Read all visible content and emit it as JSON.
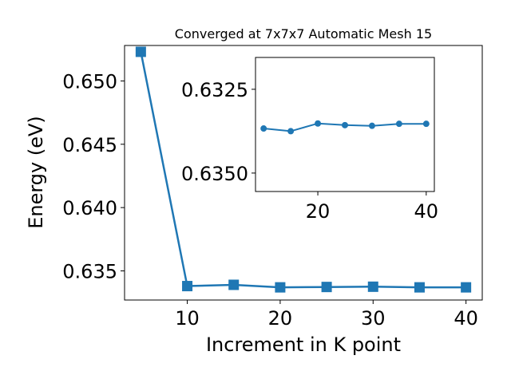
{
  "chart_data": [
    {
      "type": "line",
      "title": "Converged at 7x7x7 Automatic Mesh 15",
      "xlabel": "Increment in K point",
      "ylabel": "Energy (eV)",
      "x": [
        5,
        10,
        15,
        20,
        25,
        30,
        35,
        40
      ],
      "xlim": [
        3.25,
        41.75
      ],
      "ylim": [
        0.6327,
        0.6528
      ],
      "xticks": [
        10,
        20,
        30,
        40
      ],
      "yticks": [
        0.635,
        0.64,
        0.645,
        0.65
      ],
      "xtick_labels": [
        "10",
        "20",
        "30",
        "40"
      ],
      "ytick_labels": [
        "0.635",
        "0.640",
        "0.645",
        "0.650"
      ],
      "grid": false,
      "marker": "square",
      "color": "#1f77b4",
      "series": [
        {
          "values": [
            0.6523,
            0.6338,
            0.6339,
            0.6337,
            0.63373,
            0.63375,
            0.6337,
            0.6337
          ]
        }
      ]
    },
    {
      "type": "line",
      "inset": true,
      "x": [
        10,
        15,
        20,
        25,
        30,
        35,
        40
      ],
      "xlim": [
        8.5,
        41.5
      ],
      "ylim": [
        0.63555,
        0.63155
      ],
      "xticks": [
        20,
        40
      ],
      "yticks": [
        0.6325,
        0.635
      ],
      "xtick_labels": [
        "20",
        "40"
      ],
      "ytick_labels": [
        "0.6325",
        "0.6350"
      ],
      "grid": false,
      "marker": "circle",
      "color": "#1f77b4",
      "series": [
        {
          "values": [
            0.63367,
            0.63375,
            0.63352,
            0.63357,
            0.63359,
            0.63353,
            0.63353
          ]
        }
      ]
    }
  ]
}
